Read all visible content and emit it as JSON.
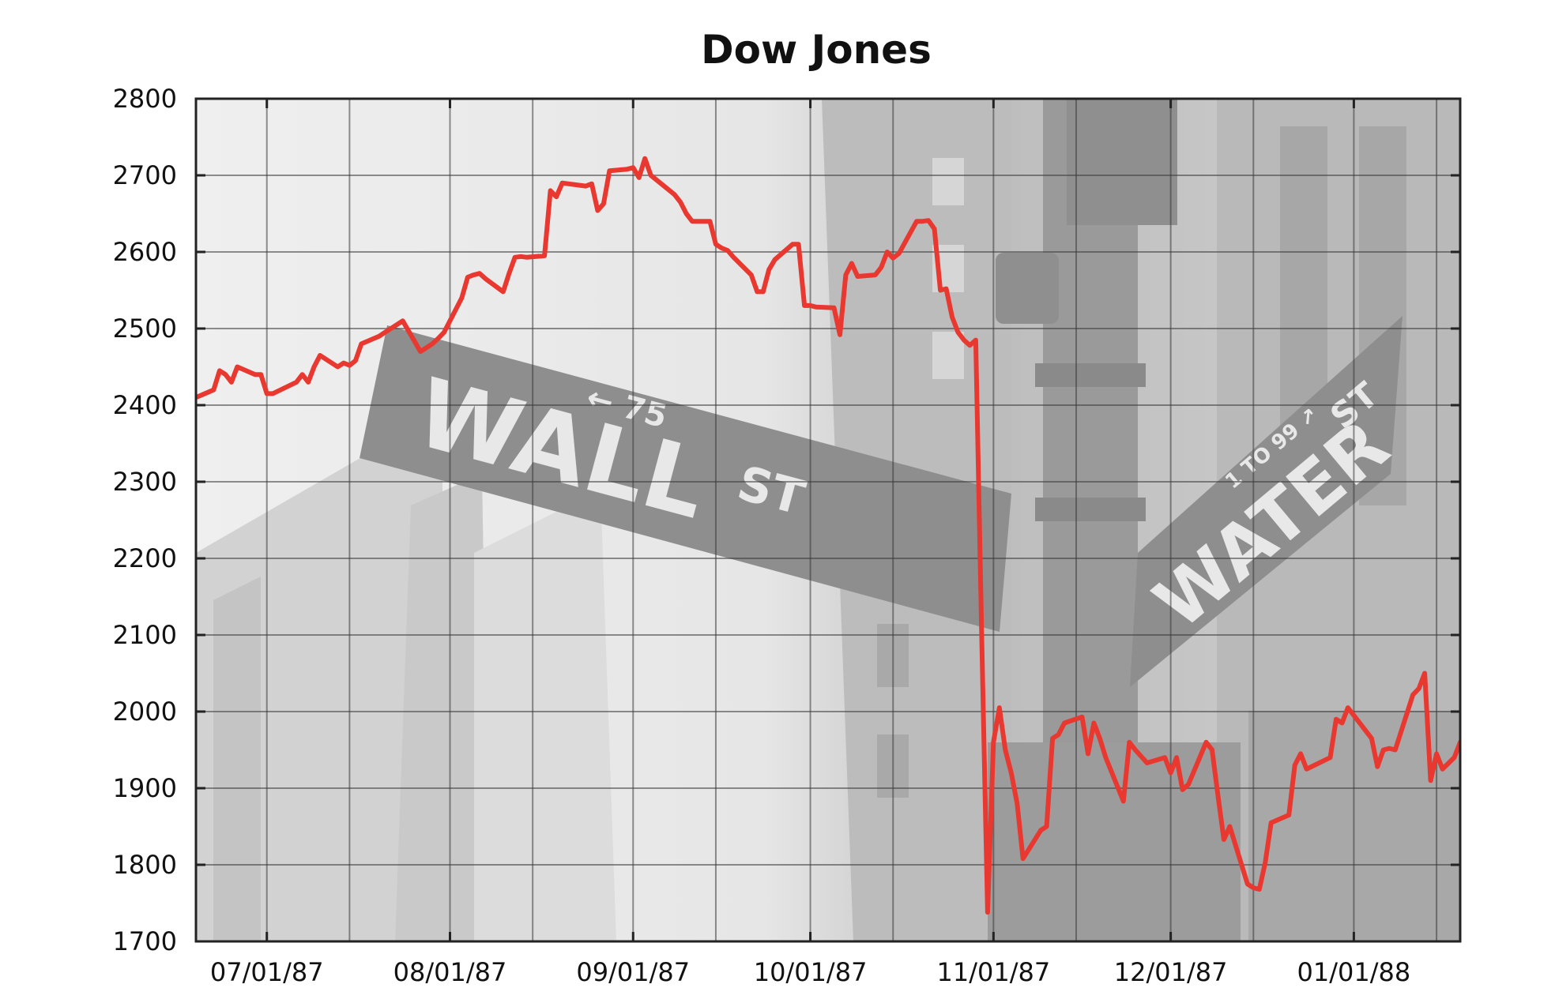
{
  "chart_data": {
    "type": "line",
    "title": "Dow Jones",
    "xlabel": "",
    "ylabel": "",
    "ylim": [
      1700,
      2800
    ],
    "yticks": [
      1700,
      1800,
      1900,
      2000,
      2100,
      2200,
      2300,
      2400,
      2500,
      2600,
      2700,
      2800
    ],
    "xlim": [
      "1987-06-19",
      "1988-01-19"
    ],
    "xticks": [
      {
        "date": "1987-07-01",
        "label": "07/01/87"
      },
      {
        "date": "1987-08-01",
        "label": "08/01/87"
      },
      {
        "date": "1987-09-01",
        "label": "09/01/87"
      },
      {
        "date": "1987-10-01",
        "label": "10/01/87"
      },
      {
        "date": "1987-11-01",
        "label": "11/01/87"
      },
      {
        "date": "1987-12-01",
        "label": "12/01/87"
      },
      {
        "date": "1988-01-01",
        "label": "01/01/88"
      }
    ],
    "grid": true,
    "line_color": "#e8382f",
    "series": [
      {
        "points": [
          [
            "1987-06-19",
            2410
          ],
          [
            "1987-06-22",
            2420
          ],
          [
            "1987-06-23",
            2445
          ],
          [
            "1987-06-24",
            2440
          ],
          [
            "1987-06-25",
            2430
          ],
          [
            "1987-06-26",
            2450
          ],
          [
            "1987-06-29",
            2440
          ],
          [
            "1987-06-30",
            2440
          ],
          [
            "1987-07-01",
            2415
          ],
          [
            "1987-07-02",
            2415
          ],
          [
            "1987-07-06",
            2430
          ],
          [
            "1987-07-07",
            2440
          ],
          [
            "1987-07-08",
            2430
          ],
          [
            "1987-07-09",
            2450
          ],
          [
            "1987-07-10",
            2465
          ],
          [
            "1987-07-13",
            2450
          ],
          [
            "1987-07-14",
            2455
          ],
          [
            "1987-07-15",
            2452
          ],
          [
            "1987-07-16",
            2458
          ],
          [
            "1987-07-17",
            2480
          ],
          [
            "1987-07-20",
            2490
          ],
          [
            "1987-07-21",
            2495
          ],
          [
            "1987-07-22",
            2500
          ],
          [
            "1987-07-23",
            2505
          ],
          [
            "1987-07-24",
            2510
          ],
          [
            "1987-07-27",
            2470
          ],
          [
            "1987-07-28",
            2475
          ],
          [
            "1987-07-29",
            2480
          ],
          [
            "1987-07-30",
            2487
          ],
          [
            "1987-07-31",
            2495
          ],
          [
            "1987-08-03",
            2540
          ],
          [
            "1987-08-04",
            2567
          ],
          [
            "1987-08-05",
            2570
          ],
          [
            "1987-08-06",
            2572
          ],
          [
            "1987-08-07",
            2565
          ],
          [
            "1987-08-10",
            2548
          ],
          [
            "1987-08-11",
            2572
          ],
          [
            "1987-08-12",
            2593
          ],
          [
            "1987-08-13",
            2594
          ],
          [
            "1987-08-14",
            2593
          ],
          [
            "1987-08-17",
            2595
          ],
          [
            "1987-08-18",
            2680
          ],
          [
            "1987-08-19",
            2672
          ],
          [
            "1987-08-20",
            2690
          ],
          [
            "1987-08-21",
            2689
          ],
          [
            "1987-08-24",
            2686
          ],
          [
            "1987-08-25",
            2689
          ],
          [
            "1987-08-26",
            2654
          ],
          [
            "1987-08-27",
            2663
          ],
          [
            "1987-08-28",
            2706
          ],
          [
            "1987-08-31",
            2708
          ],
          [
            "1987-09-01",
            2710
          ],
          [
            "1987-09-02",
            2697
          ],
          [
            "1987-09-03",
            2722
          ],
          [
            "1987-09-04",
            2700
          ],
          [
            "1987-09-08",
            2675
          ],
          [
            "1987-09-09",
            2665
          ],
          [
            "1987-09-10",
            2650
          ],
          [
            "1987-09-11",
            2640
          ],
          [
            "1987-09-14",
            2640
          ],
          [
            "1987-09-15",
            2610
          ],
          [
            "1987-09-16",
            2605
          ],
          [
            "1987-09-17",
            2602
          ],
          [
            "1987-09-18",
            2593
          ],
          [
            "1987-09-21",
            2570
          ],
          [
            "1987-09-22",
            2548
          ],
          [
            "1987-09-23",
            2548
          ],
          [
            "1987-09-24",
            2577
          ],
          [
            "1987-09-25",
            2590
          ],
          [
            "1987-09-28",
            2610
          ],
          [
            "1987-09-29",
            2610
          ],
          [
            "1987-09-30",
            2530
          ],
          [
            "1987-10-01",
            2530
          ],
          [
            "1987-10-02",
            2528
          ],
          [
            "1987-10-05",
            2527
          ],
          [
            "1987-10-06",
            2492
          ],
          [
            "1987-10-07",
            2570
          ],
          [
            "1987-10-08",
            2585
          ],
          [
            "1987-10-09",
            2568
          ],
          [
            "1987-10-12",
            2570
          ],
          [
            "1987-10-13",
            2580
          ],
          [
            "1987-10-14",
            2600
          ],
          [
            "1987-10-15",
            2592
          ],
          [
            "1987-10-16",
            2598
          ],
          [
            "1987-10-19",
            2640
          ],
          [
            "1987-10-20",
            2640
          ],
          [
            "1987-10-21",
            2641
          ],
          [
            "1987-10-22",
            2630
          ],
          [
            "1987-10-23",
            2550
          ],
          [
            "1987-10-24",
            2552
          ],
          [
            "1987-10-25",
            2515
          ],
          [
            "1987-10-26",
            2495
          ],
          [
            "1987-10-27",
            2485
          ],
          [
            "1987-10-28",
            2478
          ],
          [
            "1987-10-29",
            2485
          ],
          [
            "1987-10-30",
            2100
          ],
          [
            "1987-10-31",
            1738
          ],
          [
            "1987-11-01",
            1960
          ],
          [
            "1987-11-02",
            2005
          ],
          [
            "1987-11-03",
            1950
          ],
          [
            "1987-11-04",
            1920
          ],
          [
            "1987-11-05",
            1880
          ],
          [
            "1987-11-06",
            1808
          ],
          [
            "1987-11-09",
            1845
          ],
          [
            "1987-11-10",
            1850
          ],
          [
            "1987-11-11",
            1965
          ],
          [
            "1987-11-12",
            1970
          ],
          [
            "1987-11-13",
            1985
          ],
          [
            "1987-11-16",
            1993
          ],
          [
            "1987-11-17",
            1945
          ],
          [
            "1987-11-18",
            1985
          ],
          [
            "1987-11-19",
            1965
          ],
          [
            "1987-11-20",
            1940
          ],
          [
            "1987-11-23",
            1883
          ],
          [
            "1987-11-24",
            1960
          ],
          [
            "1987-11-25",
            1950
          ],
          [
            "1987-11-27",
            1933
          ],
          [
            "1987-11-30",
            1940
          ],
          [
            "1987-12-01",
            1920
          ],
          [
            "1987-12-02",
            1940
          ],
          [
            "1987-12-03",
            1898
          ],
          [
            "1987-12-04",
            1905
          ],
          [
            "1987-12-07",
            1960
          ],
          [
            "1987-12-08",
            1950
          ],
          [
            "1987-12-09",
            1890
          ],
          [
            "1987-12-10",
            1833
          ],
          [
            "1987-12-11",
            1850
          ],
          [
            "1987-12-14",
            1775
          ],
          [
            "1987-12-15",
            1770
          ],
          [
            "1987-12-16",
            1768
          ],
          [
            "1987-12-17",
            1803
          ],
          [
            "1987-12-18",
            1855
          ],
          [
            "1987-12-21",
            1865
          ],
          [
            "1987-12-22",
            1930
          ],
          [
            "1987-12-23",
            1945
          ],
          [
            "1987-12-24",
            1925
          ],
          [
            "1987-12-28",
            1940
          ],
          [
            "1987-12-29",
            1990
          ],
          [
            "1987-12-30",
            1985
          ],
          [
            "1987-12-31",
            2005
          ],
          [
            "1988-01-04",
            1965
          ],
          [
            "1988-01-05",
            1928
          ],
          [
            "1988-01-06",
            1950
          ],
          [
            "1988-01-07",
            1952
          ],
          [
            "1988-01-08",
            1950
          ],
          [
            "1988-01-11",
            2022
          ],
          [
            "1988-01-12",
            2030
          ],
          [
            "1988-01-13",
            2050
          ],
          [
            "1988-01-14",
            1910
          ],
          [
            "1988-01-15",
            1945
          ],
          [
            "1988-01-16",
            1925
          ],
          [
            "1988-01-18",
            1940
          ],
          [
            "1988-01-19",
            1960
          ]
        ]
      }
    ]
  },
  "background": {
    "sign_primary_text": "WALL",
    "sign_primary_suffix": "ST",
    "sign_primary_number": "← 75",
    "sign_secondary_text": "WATER",
    "sign_secondary_suffix": "ST",
    "sign_secondary_number": "1 TO 99 ↗"
  }
}
